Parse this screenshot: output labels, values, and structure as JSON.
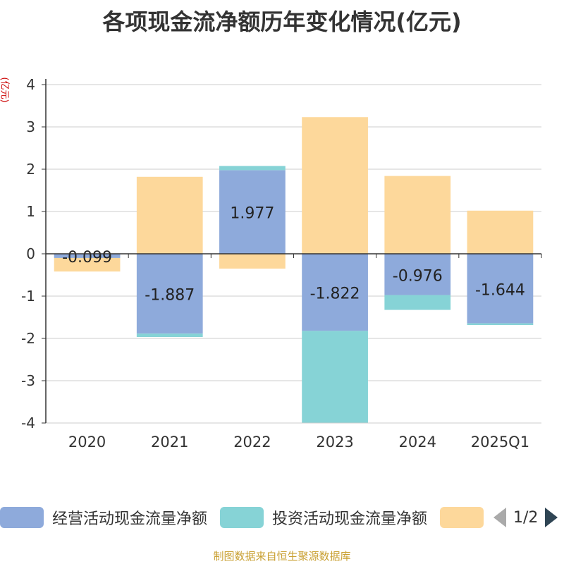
{
  "title": "各项现金流净额历年变化情况(亿元)",
  "y_unit": "(亿元)",
  "source": "制图数据来自恒生聚源数据库",
  "pager": {
    "text": "1/2"
  },
  "colors": {
    "operating": "#8eaadb",
    "investing": "#86d3d6",
    "third": "#fdd89b"
  },
  "chart_data": {
    "type": "bar",
    "stacked": true,
    "categories": [
      "2020",
      "2021",
      "2022",
      "2023",
      "2024",
      "2025Q1"
    ],
    "ylim": [
      -4,
      4
    ],
    "yticks": [
      "-4",
      "-3",
      "-2",
      "-1",
      "0",
      "1",
      "2",
      "3",
      "4"
    ],
    "series": [
      {
        "name": "经营活动现金流量净额",
        "key": "operating",
        "values": [
          -0.099,
          -1.887,
          1.977,
          -1.822,
          -0.976,
          -1.644
        ],
        "labels": [
          "-0.099",
          "-1.887",
          "1.977",
          "-1.822",
          "-0.976",
          "-1.644"
        ]
      },
      {
        "name": "投资活动现金流量净额",
        "key": "investing",
        "values": [
          0.0,
          -0.08,
          0.1,
          -2.17,
          -0.35,
          -0.04
        ]
      },
      {
        "name": "",
        "key": "third",
        "values": [
          -0.32,
          1.82,
          -0.35,
          3.23,
          1.84,
          1.02
        ]
      }
    ],
    "legend_position": "bottom"
  }
}
